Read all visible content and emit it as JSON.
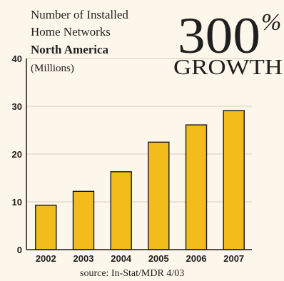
{
  "chart_data": {
    "type": "bar",
    "title_lines": [
      "Number of Installed",
      "Home Networks"
    ],
    "region": "North America",
    "unit": "(Millions)",
    "callout": {
      "number": "300",
      "percent_sign": "%",
      "word": "GROWTH"
    },
    "categories": [
      "2002",
      "2003",
      "2004",
      "2005",
      "2006",
      "2007"
    ],
    "values": [
      9.3,
      12.2,
      16.3,
      22.5,
      26.1,
      29.1
    ],
    "y_ticks": [
      "0",
      "10",
      "20",
      "30",
      "40"
    ],
    "ylim": [
      0,
      40
    ],
    "grid": true,
    "source": "source: In-Stat/MDR 4/03",
    "colors": {
      "bar": "#f2bc1b",
      "bar_outline": "#1a1a1a",
      "background": "#fdf6ea",
      "grid": "#d9cfbf",
      "axis": "#1a1a1a",
      "text": "#1f1f1f"
    }
  }
}
